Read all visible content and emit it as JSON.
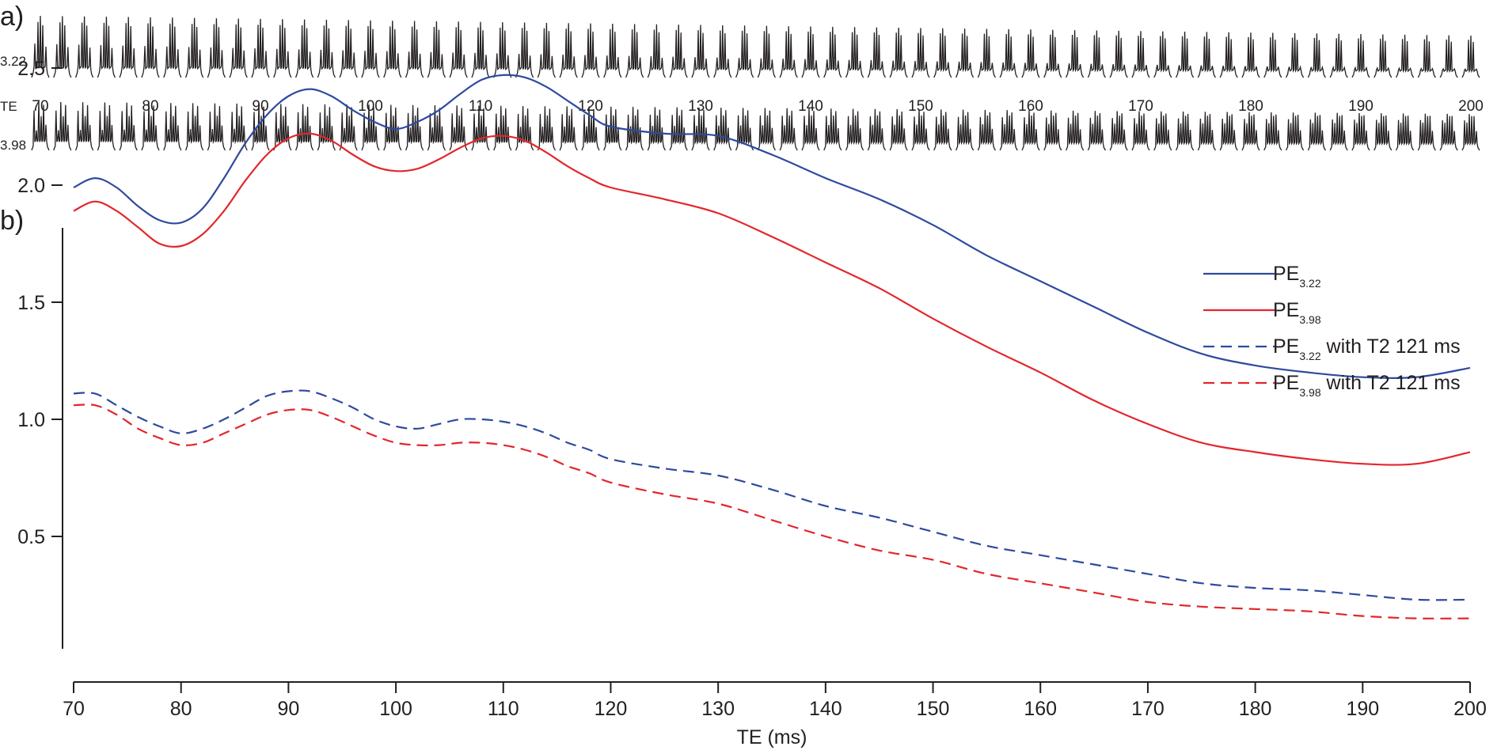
{
  "panel_a": {
    "label": "a)",
    "row_top_label": "3.22",
    "row_axis_label": "TE",
    "row_bottom_label": "3.98",
    "te_ticks": [
      "70",
      "80",
      "90",
      "100",
      "110",
      "120",
      "130",
      "140",
      "150",
      "160",
      "170",
      "180",
      "190",
      "200"
    ],
    "spectra_te_values": [
      70,
      72,
      74,
      76,
      78,
      80,
      82,
      84,
      86,
      88,
      90,
      92,
      94,
      96,
      98,
      100,
      102,
      104,
      106,
      108,
      110,
      112,
      114,
      116,
      118,
      120,
      122,
      124,
      126,
      128,
      130,
      132,
      134,
      136,
      138,
      140,
      142,
      144,
      146,
      148,
      150,
      152,
      154,
      156,
      158,
      160,
      162,
      164,
      166,
      168,
      170,
      172,
      174,
      176,
      178,
      180,
      182,
      184,
      186,
      188,
      190,
      192,
      194,
      196,
      198,
      200
    ]
  },
  "panel_b": {
    "label": "b)"
  },
  "colors": {
    "blue": "#2e4a9e",
    "red": "#e3262b",
    "ink": "#231f20"
  },
  "chart_data": {
    "type": "line",
    "title": "",
    "xlabel": "TE (ms)",
    "ylabel": "",
    "xlim": [
      70,
      200
    ],
    "ylim": [
      0.12,
      2.75
    ],
    "x_ticks": [
      70,
      80,
      90,
      100,
      110,
      120,
      130,
      140,
      150,
      160,
      170,
      180,
      190,
      200
    ],
    "y_ticks": [
      0.5,
      1.0,
      1.5,
      2.0,
      2.5
    ],
    "y_tick_labels": [
      "0.5",
      "1.0",
      "1.5",
      "2.0",
      "2.5"
    ],
    "legend_position": "top-right",
    "x": [
      70,
      72,
      74,
      76,
      78,
      80,
      82,
      84,
      86,
      88,
      90,
      92,
      94,
      96,
      98,
      100,
      102,
      104,
      106,
      108,
      110,
      112,
      114,
      116,
      118,
      120,
      125,
      130,
      135,
      140,
      145,
      150,
      155,
      160,
      165,
      170,
      175,
      180,
      185,
      190,
      195,
      200
    ],
    "series": [
      {
        "name": "PE",
        "sub": "3.22",
        "suffix": "",
        "color": "#2e4a9e",
        "dash": false,
        "values": [
          1.99,
          2.03,
          1.99,
          1.91,
          1.85,
          1.84,
          1.9,
          2.03,
          2.18,
          2.3,
          2.38,
          2.41,
          2.38,
          2.32,
          2.27,
          2.24,
          2.27,
          2.32,
          2.39,
          2.45,
          2.47,
          2.46,
          2.42,
          2.36,
          2.3,
          2.25,
          2.22,
          2.21,
          2.13,
          2.03,
          1.94,
          1.83,
          1.7,
          1.59,
          1.48,
          1.37,
          1.28,
          1.23,
          1.2,
          1.18,
          1.18,
          1.22
        ]
      },
      {
        "name": "PE",
        "sub": "3.98",
        "suffix": "",
        "color": "#e3262b",
        "dash": false,
        "values": [
          1.89,
          1.93,
          1.89,
          1.82,
          1.75,
          1.74,
          1.79,
          1.89,
          2.02,
          2.13,
          2.2,
          2.22,
          2.19,
          2.13,
          2.08,
          2.06,
          2.07,
          2.11,
          2.16,
          2.2,
          2.21,
          2.19,
          2.14,
          2.08,
          2.03,
          1.99,
          1.94,
          1.88,
          1.78,
          1.67,
          1.56,
          1.43,
          1.31,
          1.2,
          1.08,
          0.98,
          0.9,
          0.86,
          0.83,
          0.81,
          0.81,
          0.86
        ]
      },
      {
        "name": "PE",
        "sub": "3.22",
        "suffix": " with T2 121 ms",
        "color": "#2e4a9e",
        "dash": true,
        "values": [
          1.11,
          1.11,
          1.06,
          1.01,
          0.97,
          0.94,
          0.96,
          1.0,
          1.05,
          1.1,
          1.12,
          1.12,
          1.09,
          1.05,
          1.0,
          0.97,
          0.96,
          0.98,
          1.0,
          1.0,
          0.99,
          0.97,
          0.94,
          0.9,
          0.87,
          0.83,
          0.79,
          0.76,
          0.7,
          0.63,
          0.58,
          0.52,
          0.46,
          0.42,
          0.38,
          0.34,
          0.3,
          0.28,
          0.27,
          0.25,
          0.23,
          0.23
        ]
      },
      {
        "name": "PE",
        "sub": "3.98",
        "suffix": " with T2 121 ms",
        "color": "#e3262b",
        "dash": true,
        "values": [
          1.06,
          1.06,
          1.02,
          0.96,
          0.92,
          0.89,
          0.9,
          0.94,
          0.98,
          1.02,
          1.04,
          1.04,
          1.01,
          0.97,
          0.93,
          0.9,
          0.89,
          0.89,
          0.9,
          0.9,
          0.89,
          0.87,
          0.84,
          0.8,
          0.77,
          0.73,
          0.68,
          0.64,
          0.57,
          0.5,
          0.44,
          0.4,
          0.34,
          0.3,
          0.26,
          0.22,
          0.2,
          0.19,
          0.18,
          0.16,
          0.15,
          0.15
        ]
      }
    ]
  }
}
